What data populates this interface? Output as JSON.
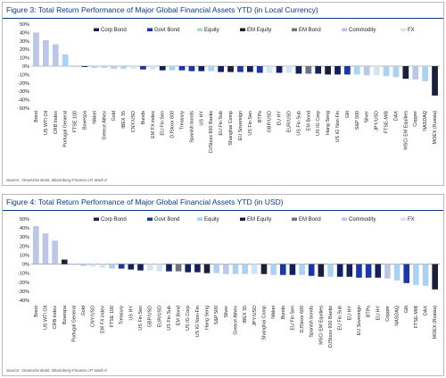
{
  "chart_data": [
    {
      "type": "bar",
      "title": "Figure 3: Total Return Performance of Major Global Financial Assets YTD (in Local Currency)",
      "source": "Source : Deutsche Bank, Bloomberg Finance LP, Mark-It",
      "ylim": [
        -50,
        50
      ],
      "yticks": [
        "50%",
        "40%",
        "30%",
        "20%",
        "10%",
        "0%",
        "-10%",
        "-20%",
        "-30%",
        "-40%",
        "-50%"
      ],
      "ytick_values": [
        50,
        40,
        30,
        20,
        10,
        0,
        -10,
        -20,
        -30,
        -40,
        -50
      ],
      "grid": false,
      "legend": [
        {
          "name": "Corp Bond",
          "color": "#12205e"
        },
        {
          "name": "Govt Bond",
          "color": "#1a36a8"
        },
        {
          "name": "Equity",
          "color": "#a9d3f0"
        },
        {
          "name": "EM Equity",
          "color": "#1b1f3a"
        },
        {
          "name": "EM Bond",
          "color": "#6e7480"
        },
        {
          "name": "Commodity",
          "color": "#bcc6e8"
        },
        {
          "name": "FX",
          "color": "#d3e5f5"
        }
      ],
      "legend_placement": "top",
      "categories": [
        "Brent",
        "US WTI Oil",
        "CRB Index",
        "Portugal General",
        "FTSE 100",
        "Bovespa",
        "Nikkei",
        "Greece Athex",
        "Gold",
        "IBEX 35",
        "CNY/USD",
        "Bunds",
        "EM FX index",
        "EU Fin Sen",
        "DJStoxx 600",
        "Treasury",
        "Spanish bonds",
        "US HY",
        "DJStoxx 600 Banks",
        "EU Fin Sub",
        "Shanghai Comp",
        "EU Sovereign",
        "US Fin Sen",
        "BTPs",
        "GBP/USD",
        "EU HY",
        "EUR/USD",
        "US Fin Sub",
        "EM Bond",
        "US IG Corp",
        "Hang Seng",
        "US IG Non-Fin",
        "Gilt",
        "S&P 500",
        "Silver",
        "JPY/USD",
        "FTSE-MIB",
        "DAX",
        "MSCI EM Equities",
        "Copper",
        "NASDAQ",
        "MOEX (Russia)"
      ],
      "values": [
        40,
        31,
        26,
        14,
        -1,
        -1,
        -2,
        -2,
        -3,
        -3,
        -3,
        -4,
        -4,
        -5,
        -5,
        -5,
        -6,
        -6,
        -6,
        -7,
        -7,
        -7,
        -7,
        -8,
        -8,
        -8,
        -8,
        -9,
        -9,
        -9,
        -10,
        -10,
        -10,
        -10,
        -11,
        -11,
        -12,
        -13,
        -15,
        -16,
        -18,
        -35
      ],
      "group": [
        "Commodity",
        "Commodity",
        "Commodity",
        "Equity",
        "Equity",
        "EM Equity",
        "Equity",
        "Equity",
        "Commodity",
        "Equity",
        "FX",
        "Govt Bond",
        "FX",
        "Corp Bond",
        "Equity",
        "Govt Bond",
        "Govt Bond",
        "Corp Bond",
        "Equity",
        "Corp Bond",
        "EM Equity",
        "Govt Bond",
        "Corp Bond",
        "Govt Bond",
        "FX",
        "Corp Bond",
        "FX",
        "Corp Bond",
        "EM Bond",
        "Corp Bond",
        "EM Equity",
        "Corp Bond",
        "Govt Bond",
        "Equity",
        "Commodity",
        "FX",
        "Equity",
        "Equity",
        "EM Equity",
        "Commodity",
        "Equity",
        "EM Equity"
      ]
    },
    {
      "type": "bar",
      "title": "Figure 4: Total Return Performance of Major Global Financial Assets YTD (in USD)",
      "source": "Source : Deutsche Bank, Bloomberg Finance LP, Mark-It",
      "ylim": [
        -40,
        50
      ],
      "yticks": [
        "50%",
        "40%",
        "30%",
        "20%",
        "10%",
        "0%",
        "-10%",
        "-20%",
        "-30%",
        "-40%"
      ],
      "ytick_values": [
        50,
        40,
        30,
        20,
        10,
        0,
        -10,
        -20,
        -30,
        -40
      ],
      "grid": false,
      "legend": [
        {
          "name": "Corp Bond",
          "color": "#12205e"
        },
        {
          "name": "Govt Bond",
          "color": "#1a36a8"
        },
        {
          "name": "Equity",
          "color": "#a9d3f0"
        },
        {
          "name": "EM Equity",
          "color": "#1b1f3a"
        },
        {
          "name": "EM Bond",
          "color": "#6e7480"
        },
        {
          "name": "Commodity",
          "color": "#bcc6e8"
        },
        {
          "name": "FX",
          "color": "#d3e5f5"
        }
      ],
      "legend_placement": "top",
      "categories": [
        "Brent",
        "US WTI Oil",
        "CRB Index",
        "Bovespa",
        "Portugal General",
        "Gold",
        "CNY/USD",
        "EM FX index",
        "FTSE 100",
        "Treasury",
        "US HY",
        "US Fin Sen",
        "GBP/USD",
        "EUR/USD",
        "US Fin Sub",
        "EM Bond",
        "US IG Corp",
        "US IG Non-Fin",
        "Hang Seng",
        "S&P 500",
        "Silver",
        "Greece Athex",
        "IBEX 35",
        "JPY/USD",
        "Shanghai Comp",
        "Nikkei",
        "Bunds",
        "EU Fin Sen",
        "DJStoxx 600",
        "Spanish bonds",
        "MSCI EM Equities",
        "DJStoxx 600 Banks",
        "EU Fin Sub",
        "EU HY",
        "EU Sovereign",
        "BTPs",
        "EU HY",
        "Copper",
        "NASDAQ",
        "Gilt",
        "FTSE-MIB",
        "DAX",
        "MOEX (Russia)"
      ],
      "values": [
        42,
        34,
        26,
        5,
        -1,
        -2,
        -3,
        -4,
        -5,
        -5,
        -6,
        -7,
        -7,
        -8,
        -8,
        -8,
        -9,
        -9,
        -10,
        -10,
        -11,
        -11,
        -11,
        -11,
        -11,
        -12,
        -12,
        -12,
        -12,
        -13,
        -14,
        -14,
        -14,
        -14,
        -15,
        -15,
        -15,
        -16,
        -18,
        -21,
        -23,
        -24,
        -28
      ],
      "group": [
        "Commodity",
        "Commodity",
        "Commodity",
        "EM Equity",
        "Equity",
        "Commodity",
        "FX",
        "FX",
        "Equity",
        "Govt Bond",
        "Corp Bond",
        "Corp Bond",
        "FX",
        "FX",
        "Corp Bond",
        "EM Bond",
        "Corp Bond",
        "Corp Bond",
        "EM Equity",
        "Equity",
        "Commodity",
        "Equity",
        "Equity",
        "FX",
        "EM Equity",
        "Equity",
        "Govt Bond",
        "Corp Bond",
        "Equity",
        "Govt Bond",
        "EM Equity",
        "Equity",
        "Corp Bond",
        "Corp Bond",
        "Govt Bond",
        "Govt Bond",
        "Corp Bond",
        "Commodity",
        "Equity",
        "Govt Bond",
        "Equity",
        "Equity",
        "EM Equity"
      ]
    }
  ]
}
